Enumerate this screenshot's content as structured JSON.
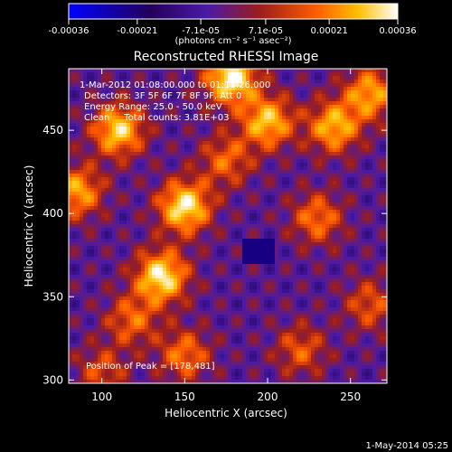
{
  "chart_data": {
    "type": "heatmap",
    "title": "Reconstructed RHESSI Image",
    "xlabel": "Heliocentric X (arcsec)",
    "ylabel": "Heliocentric Y (arcsec)",
    "xlim": [
      80,
      272
    ],
    "ylim": [
      298,
      487
    ],
    "x_ticks": [
      100,
      150,
      200,
      250
    ],
    "y_ticks": [
      300,
      350,
      400,
      450
    ],
    "colorbar": {
      "range": [
        -0.00036,
        0.00036
      ],
      "tick_values": [
        -0.00036,
        -0.00021,
        -7.1e-05,
        7.1e-05,
        0.00021,
        0.00036
      ],
      "tick_labels": [
        "-0.00036",
        "-0.00021",
        "-7.1e-05",
        "7.1e-05",
        "0.00021",
        "0.00036"
      ],
      "unit_label": "(photons cm⁻² s⁻¹ asec⁻²)",
      "colors": [
        "#0000ff",
        "#200050",
        "#4a1aa8",
        "#9b1d1d",
        "#ff5a00",
        "#ffc000",
        "#ffffff"
      ]
    },
    "annotations": {
      "time": "1-Mar-2012 01:08:00.000 to 01:11:26.000",
      "detectors": "Detectors: 3F 5F 6F 7F 8F 9F, Att 0",
      "energy": "Energy Range: 25.0 - 50.0 keV",
      "clean": "Clean     Total counts: 3.81E+03",
      "peak": "Position of Peak = [178,481]"
    },
    "image_sources": [
      {
        "x": 178,
        "y": 481,
        "amp": 1.0
      },
      {
        "x": 150,
        "y": 404,
        "amp": 0.95
      },
      {
        "x": 136,
        "y": 362,
        "amp": 0.95
      },
      {
        "x": 110,
        "y": 450,
        "amp": 0.85
      },
      {
        "x": 200,
        "y": 455,
        "amp": 0.8
      },
      {
        "x": 240,
        "y": 452,
        "amp": 0.75
      },
      {
        "x": 262,
        "y": 472,
        "amp": 0.7
      },
      {
        "x": 85,
        "y": 413,
        "amp": 0.7
      },
      {
        "x": 230,
        "y": 397,
        "amp": 0.55
      },
      {
        "x": 150,
        "y": 315,
        "amp": 0.55
      },
      {
        "x": 118,
        "y": 336,
        "amp": 0.5
      },
      {
        "x": 220,
        "y": 318,
        "amp": 0.45
      },
      {
        "x": 175,
        "y": 432,
        "amp": 0.5
      },
      {
        "x": 262,
        "y": 345,
        "amp": 0.45
      },
      {
        "x": 100,
        "y": 305,
        "amp": 0.4
      }
    ]
  },
  "footer": {
    "date": "1-May-2014 05:25"
  }
}
